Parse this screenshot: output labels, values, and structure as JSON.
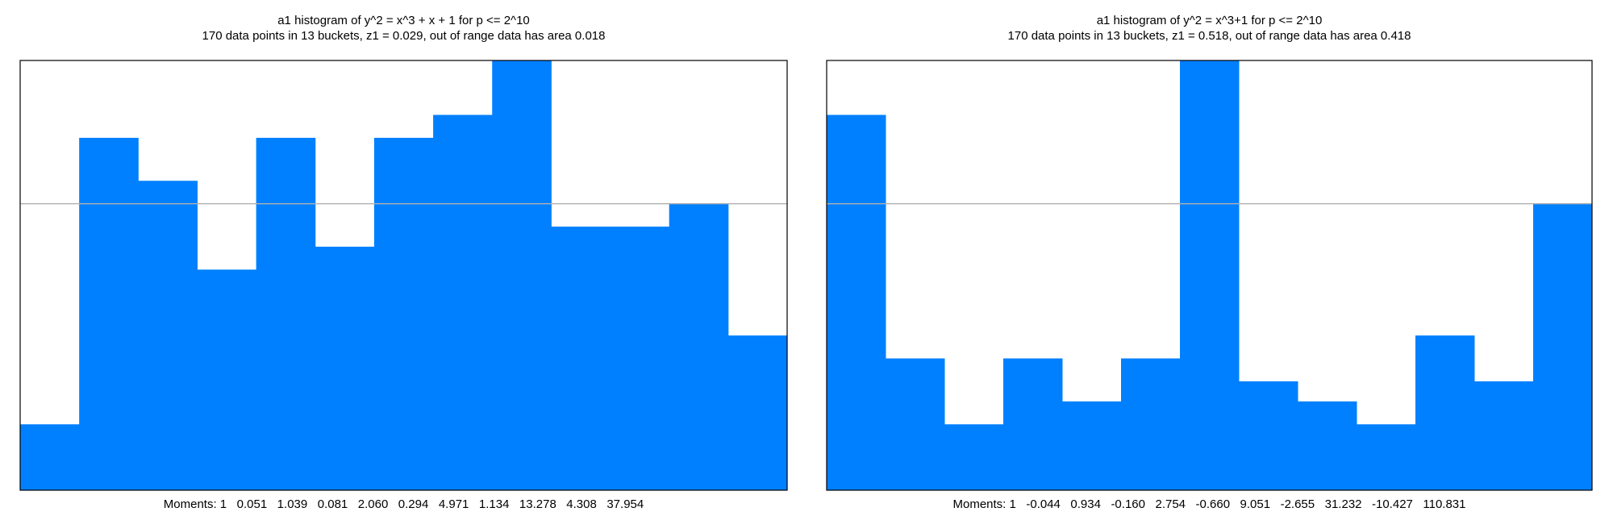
{
  "chart_data": [
    {
      "type": "histogram",
      "title": "a1 histogram of y^2 = x^3 + x + 1 for p <= 2^10",
      "subtitle": "170 data points in 13 buckets, z1 = 0.029, out of range data has area 0.018",
      "values": [
        0.23,
        1.23,
        1.08,
        0.77,
        1.23,
        0.85,
        1.23,
        1.31,
        1.5,
        0.92,
        0.92,
        1.0,
        0.54
      ],
      "color": "#0080ff",
      "ylim": [
        0,
        1.5
      ],
      "reference_line": 1,
      "footer": "Moments: 1   0.051   1.039   0.081   2.060   0.294   4.971   1.134   13.278   4.308   37.954"
    },
    {
      "type": "histogram",
      "title": "a1 histogram of y^2 = x^3+1 for p <= 2^10",
      "subtitle": "170 data points in 13 buckets, z1 = 0.518, out of range data has area 0.418",
      "values": [
        1.31,
        0.46,
        0.23,
        0.46,
        0.31,
        0.46,
        1.5,
        0.38,
        0.31,
        0.23,
        0.54,
        0.38,
        1.0
      ],
      "color": "#0080ff",
      "ylim": [
        0,
        1.5
      ],
      "reference_line": 1,
      "footer": "Moments: 1   -0.044   0.934   -0.160   2.754   -0.660   9.051   -2.655   31.232   -10.427   110.831"
    }
  ]
}
